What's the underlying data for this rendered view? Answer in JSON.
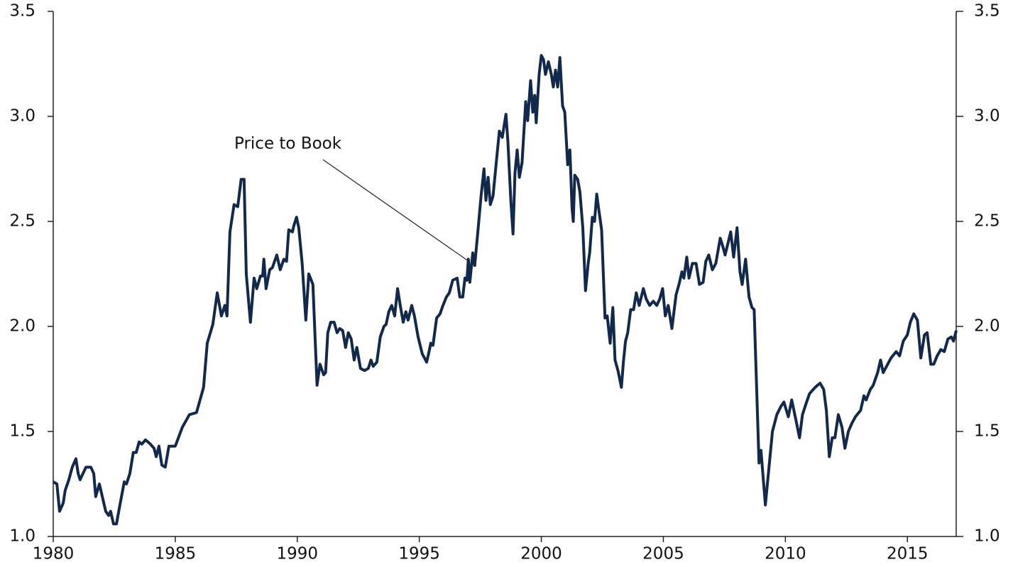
{
  "chart_data": {
    "type": "line",
    "annotations": [
      {
        "text": "Price to Book"
      }
    ],
    "x": [
      1980.0,
      1980.15,
      1980.26,
      1980.41,
      1980.49,
      1980.64,
      1980.78,
      1980.93,
      1981.02,
      1981.1,
      1981.22,
      1981.34,
      1981.54,
      1981.66,
      1981.74,
      1981.89,
      1982.03,
      1982.15,
      1982.27,
      1982.35,
      1982.47,
      1982.59,
      1982.7,
      1982.91,
      1983.0,
      1983.14,
      1983.28,
      1983.4,
      1983.52,
      1983.63,
      1983.78,
      1983.98,
      1984.13,
      1984.22,
      1984.33,
      1984.45,
      1984.59,
      1984.74,
      1985.0,
      1985.29,
      1985.58,
      1985.87,
      1986.16,
      1986.31,
      1986.54,
      1986.72,
      1986.89,
      1987.03,
      1987.12,
      1987.24,
      1987.41,
      1987.56,
      1987.7,
      1987.82,
      1987.91,
      1988.02,
      1988.08,
      1988.23,
      1988.34,
      1988.49,
      1988.58,
      1988.63,
      1988.72,
      1988.87,
      1988.98,
      1989.16,
      1989.3,
      1989.45,
      1989.56,
      1989.65,
      1989.8,
      1989.86,
      1989.97,
      1990.06,
      1990.2,
      1990.35,
      1990.47,
      1990.64,
      1990.81,
      1990.93,
      1991.08,
      1991.16,
      1991.25,
      1991.37,
      1991.51,
      1991.63,
      1991.74,
      1991.86,
      1991.98,
      1992.09,
      1992.21,
      1992.33,
      1992.44,
      1992.59,
      1992.76,
      1992.91,
      1993.02,
      1993.11,
      1993.26,
      1993.4,
      1993.55,
      1993.64,
      1993.75,
      1993.87,
      1993.99,
      1994.11,
      1994.22,
      1994.34,
      1994.45,
      1994.54,
      1994.69,
      1994.8,
      1994.95,
      1995.12,
      1995.3,
      1995.38,
      1995.47,
      1995.56,
      1995.71,
      1995.85,
      1995.97,
      1996.11,
      1996.23,
      1996.37,
      1996.55,
      1996.66,
      1996.78,
      1996.87,
      1996.95,
      1997.01,
      1997.07,
      1997.19,
      1997.27,
      1997.39,
      1997.53,
      1997.65,
      1997.73,
      1997.82,
      1997.91,
      1998.02,
      1998.17,
      1998.28,
      1998.4,
      1998.55,
      1998.63,
      1998.75,
      1998.84,
      1998.92,
      1999.01,
      1999.1,
      1999.21,
      1999.36,
      1999.44,
      1999.56,
      1999.65,
      1999.73,
      1999.79,
      1999.91,
      2000.0,
      2000.09,
      2000.17,
      2000.29,
      2000.41,
      2000.49,
      2000.58,
      2000.67,
      2000.76,
      2000.87,
      2000.96,
      2001.08,
      2001.17,
      2001.26,
      2001.31,
      2001.37,
      2001.49,
      2001.58,
      2001.7,
      2001.81,
      2001.92,
      2001.98,
      2002.09,
      2002.18,
      2002.27,
      2002.35,
      2002.47,
      2002.61,
      2002.7,
      2002.82,
      2002.93,
      2003.02,
      2003.14,
      2003.28,
      2003.37,
      2003.45,
      2003.54,
      2003.66,
      2003.78,
      2003.89,
      2004.01,
      2004.18,
      2004.3,
      2004.44,
      2004.59,
      2004.73,
      2004.85,
      2004.97,
      2005.08,
      2005.2,
      2005.35,
      2005.52,
      2005.64,
      2005.76,
      2005.84,
      2005.96,
      2006.05,
      2006.19,
      2006.34,
      2006.48,
      2006.63,
      2006.74,
      2006.86,
      2007.01,
      2007.15,
      2007.33,
      2007.44,
      2007.53,
      2007.76,
      2007.88,
      2008.02,
      2008.14,
      2008.23,
      2008.37,
      2008.51,
      2008.63,
      2008.72,
      2008.92,
      2009.0,
      2009.18,
      2009.47,
      2009.65,
      2009.82,
      2009.94,
      2010.12,
      2010.26,
      2010.44,
      2010.58,
      2010.7,
      2010.84,
      2010.99,
      2011.22,
      2011.42,
      2011.57,
      2011.68,
      2011.8,
      2011.92,
      2012.03,
      2012.17,
      2012.32,
      2012.44,
      2012.58,
      2012.73,
      2012.87,
      2013.08,
      2013.22,
      2013.31,
      2013.48,
      2013.6,
      2013.78,
      2013.9,
      2014.01,
      2014.19,
      2014.33,
      2014.54,
      2014.68,
      2014.83,
      2015.0,
      2015.12,
      2015.26,
      2015.41,
      2015.55,
      2015.7,
      2015.81,
      2015.96,
      2016.08,
      2016.22,
      2016.37,
      2016.51,
      2016.66,
      2016.8,
      2016.89,
      2017.0
    ],
    "series": [
      {
        "color": "#13294b",
        "values": [
          1.26,
          1.25,
          1.12,
          1.16,
          1.22,
          1.27,
          1.33,
          1.37,
          1.3,
          1.27,
          1.3,
          1.33,
          1.33,
          1.3,
          1.19,
          1.25,
          1.18,
          1.12,
          1.1,
          1.12,
          1.06,
          1.06,
          1.13,
          1.26,
          1.25,
          1.3,
          1.4,
          1.4,
          1.45,
          1.44,
          1.46,
          1.44,
          1.42,
          1.38,
          1.43,
          1.34,
          1.33,
          1.43,
          1.43,
          1.52,
          1.58,
          1.59,
          1.71,
          1.92,
          2.01,
          2.16,
          2.05,
          2.1,
          2.05,
          2.45,
          2.58,
          2.57,
          2.7,
          2.7,
          2.25,
          2.1,
          2.02,
          2.23,
          2.18,
          2.24,
          2.24,
          2.32,
          2.18,
          2.27,
          2.28,
          2.34,
          2.27,
          2.32,
          2.31,
          2.46,
          2.45,
          2.48,
          2.52,
          2.47,
          2.3,
          2.03,
          2.25,
          2.2,
          1.72,
          1.82,
          1.77,
          1.78,
          1.97,
          2.02,
          2.02,
          1.97,
          1.99,
          1.98,
          1.9,
          1.97,
          1.94,
          1.84,
          1.9,
          1.8,
          1.79,
          1.8,
          1.84,
          1.81,
          1.83,
          1.95,
          2.0,
          2.01,
          2.07,
          2.1,
          2.05,
          2.18,
          2.1,
          2.02,
          2.07,
          2.03,
          2.1,
          2.05,
          1.95,
          1.87,
          1.83,
          1.87,
          1.92,
          1.91,
          2.04,
          2.06,
          2.1,
          2.14,
          2.16,
          2.22,
          2.23,
          2.14,
          2.14,
          2.23,
          2.22,
          2.32,
          2.21,
          2.35,
          2.29,
          2.44,
          2.62,
          2.75,
          2.6,
          2.71,
          2.58,
          2.62,
          2.8,
          2.93,
          2.9,
          3.01,
          2.88,
          2.6,
          2.44,
          2.73,
          2.84,
          2.71,
          2.78,
          3.07,
          2.98,
          3.17,
          3.02,
          3.1,
          2.97,
          3.2,
          3.29,
          3.27,
          3.2,
          3.26,
          3.2,
          3.14,
          3.22,
          3.14,
          3.28,
          3.05,
          3.02,
          2.77,
          2.84,
          2.56,
          2.5,
          2.72,
          2.7,
          2.64,
          2.47,
          2.17,
          2.3,
          2.35,
          2.52,
          2.5,
          2.63,
          2.56,
          2.46,
          2.04,
          2.05,
          1.92,
          2.09,
          1.84,
          1.79,
          1.71,
          1.84,
          1.93,
          1.97,
          2.08,
          2.08,
          2.16,
          2.1,
          2.18,
          2.13,
          2.1,
          2.12,
          2.1,
          2.13,
          2.18,
          2.05,
          2.1,
          1.99,
          2.15,
          2.2,
          2.26,
          2.23,
          2.33,
          2.23,
          2.3,
          2.3,
          2.2,
          2.21,
          2.31,
          2.34,
          2.27,
          2.3,
          2.42,
          2.38,
          2.34,
          2.45,
          2.33,
          2.47,
          2.26,
          2.2,
          2.32,
          2.14,
          2.09,
          2.08,
          1.35,
          1.41,
          1.15,
          1.5,
          1.58,
          1.62,
          1.64,
          1.57,
          1.65,
          1.55,
          1.47,
          1.58,
          1.63,
          1.68,
          1.71,
          1.73,
          1.7,
          1.6,
          1.38,
          1.47,
          1.47,
          1.58,
          1.52,
          1.42,
          1.5,
          1.54,
          1.57,
          1.6,
          1.67,
          1.65,
          1.7,
          1.72,
          1.78,
          1.84,
          1.78,
          1.82,
          1.85,
          1.88,
          1.86,
          1.93,
          1.96,
          2.02,
          2.06,
          2.03,
          1.85,
          1.96,
          1.97,
          1.82,
          1.82,
          1.86,
          1.89,
          1.88,
          1.94,
          1.95,
          1.93,
          1.98
        ]
      }
    ],
    "xlim": [
      1980,
      2017
    ],
    "xticks": [
      1980,
      1985,
      1990,
      1995,
      2000,
      2005,
      2010,
      2015
    ],
    "ylim": [
      1.0,
      3.5
    ],
    "yticks": [
      {
        "value": 1.0,
        "label": "1.0"
      },
      {
        "value": 1.5,
        "label": "1.5"
      },
      {
        "value": 2.0,
        "label": "2.0"
      },
      {
        "value": 2.5,
        "label": "2.5"
      },
      {
        "value": 3.0,
        "label": "3.0"
      },
      {
        "value": 3.5,
        "label": "3.5"
      }
    ],
    "y2lim": [
      1.0,
      3.5
    ],
    "y2ticks": [
      {
        "value": 1.0,
        "label": "1.0"
      },
      {
        "value": 1.5,
        "label": "1.5"
      },
      {
        "value": 2.0,
        "label": "2.0"
      },
      {
        "value": 2.5,
        "label": "2.5"
      },
      {
        "value": 3.0,
        "label": "3.0"
      },
      {
        "value": 3.5,
        "label": "3.5"
      }
    ],
    "grid": false
  }
}
